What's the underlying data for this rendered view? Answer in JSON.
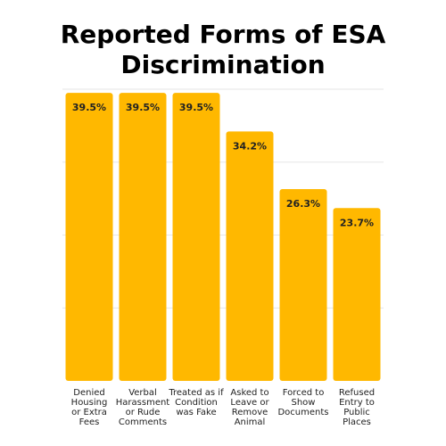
{
  "chart_data": {
    "type": "bar",
    "title": "Reported Forms of ESA Discrimination",
    "xlabel": "",
    "ylabel": "",
    "categories": [
      "Denied Housing or Extra Fees",
      "Verbal Harassment or Rude Comments",
      "Treated as if Condition was Fake",
      "Asked to Leave or Remove Animal",
      "Forced to Show Documents",
      "Refused Entry to Public Places"
    ],
    "category_lines": [
      [
        "Denied",
        "Housing",
        "or Extra",
        "Fees"
      ],
      [
        "Verbal",
        "Harassment",
        "or Rude",
        "Comments"
      ],
      [
        "Treated as if",
        "Condition",
        "was Fake"
      ],
      [
        "Asked to",
        "Leave or",
        "Remove",
        "Animal"
      ],
      [
        "Forced to",
        "Show",
        "Documents"
      ],
      [
        "Refused",
        "Entry to",
        "Public",
        "Places"
      ]
    ],
    "values": [
      39.5,
      39.5,
      39.5,
      34.2,
      26.3,
      23.7
    ],
    "value_labels": [
      "39.5%",
      "39.5%",
      "39.5%",
      "34.2%",
      "26.3%",
      "23.7%"
    ],
    "ylim": [
      0,
      40
    ],
    "grid": true,
    "legend": "none",
    "bar_color": "#FFB800",
    "grid_color": "#e6e6e6"
  }
}
